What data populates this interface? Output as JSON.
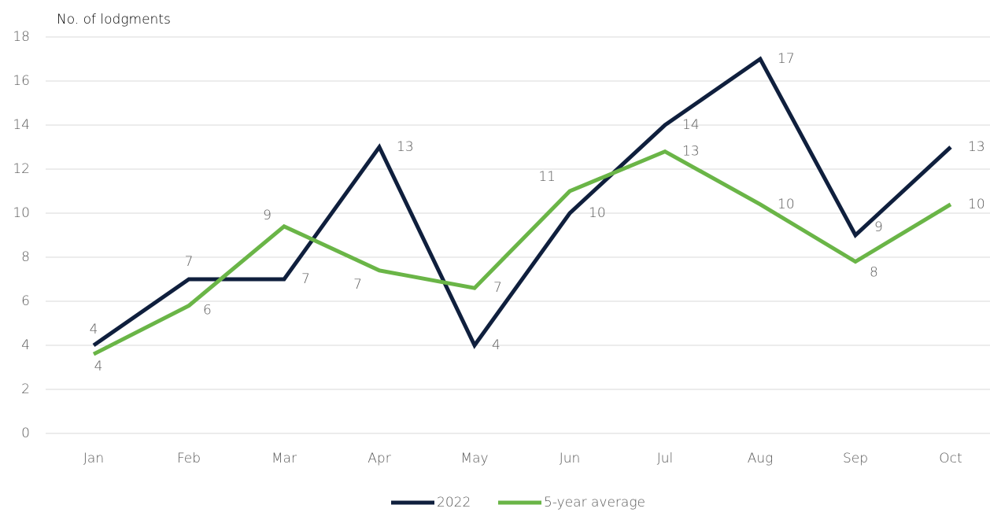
{
  "chart_data": {
    "type": "line",
    "y_axis_label": "No. of lodgments",
    "categories": [
      "Jan",
      "Feb",
      "Mar",
      "Apr",
      "May",
      "Jun",
      "Jul",
      "Aug",
      "Sep",
      "Oct"
    ],
    "series": [
      {
        "name": "2022",
        "color": "#0f1f3d",
        "values": [
          4,
          7,
          7,
          13,
          4,
          10,
          14,
          17,
          9,
          13
        ]
      },
      {
        "name": "5-year average",
        "color": "#6ab547",
        "values": [
          3.6,
          5.8,
          9.4,
          7.4,
          6.6,
          11,
          12.8,
          10.4,
          7.8,
          10.4
        ],
        "value_labels": [
          "4",
          "6",
          "9",
          "7",
          "7",
          "11",
          "13",
          "10",
          "8",
          "10"
        ]
      }
    ],
    "ylim": [
      0,
      18
    ],
    "yticks": [
      0,
      2,
      4,
      6,
      8,
      10,
      12,
      14,
      16,
      18
    ],
    "grid": true,
    "legend": "bottom"
  }
}
